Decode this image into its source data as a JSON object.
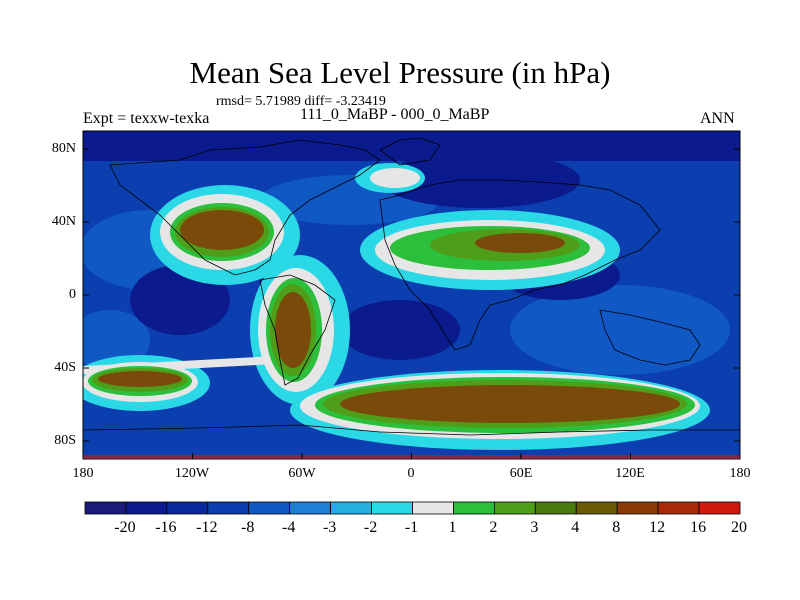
{
  "title": "Mean Sea Level Pressure (in hPa)",
  "stats_text": "rmsd= 5.71989 diff= -3.23419",
  "experiment_label": "Expt = texxw-texka",
  "case_label": "111_0_MaBP - 000_0_MaBP",
  "season_label": "ANN",
  "y_ticks": [
    "80N",
    "40N",
    "0",
    "40S",
    "80S"
  ],
  "x_ticks": [
    "180",
    "120W",
    "60W",
    "0",
    "60E",
    "120E",
    "180"
  ],
  "colorbar": {
    "labels": [
      "-20",
      "-16",
      "-12",
      "-8",
      "-4",
      "-3",
      "-2",
      "-1",
      "1",
      "2",
      "3",
      "4",
      "8",
      "12",
      "16",
      "20"
    ],
    "colors": [
      "#1a1a7a",
      "#0b1a8c",
      "#0a2a9c",
      "#0b3fb0",
      "#1058c4",
      "#1d7fd6",
      "#25aee0",
      "#2ad8e6",
      "#e6e6e6",
      "#2bbf3c",
      "#4f9e1a",
      "#4b7a10",
      "#6b5a06",
      "#8a3a06",
      "#a82a08",
      "#d01a10"
    ]
  },
  "map_colors": {
    "ocean_deep": "#0b1a8c",
    "ocean_mid": "#0b3fb0",
    "ocean_light": "#1058c4",
    "cyan": "#2ad8e6",
    "teal": "#25aee0",
    "white": "#e6e6e6",
    "green": "#2bbf3c",
    "olive": "#4f9e1a",
    "brown": "#7a4a0a"
  }
}
